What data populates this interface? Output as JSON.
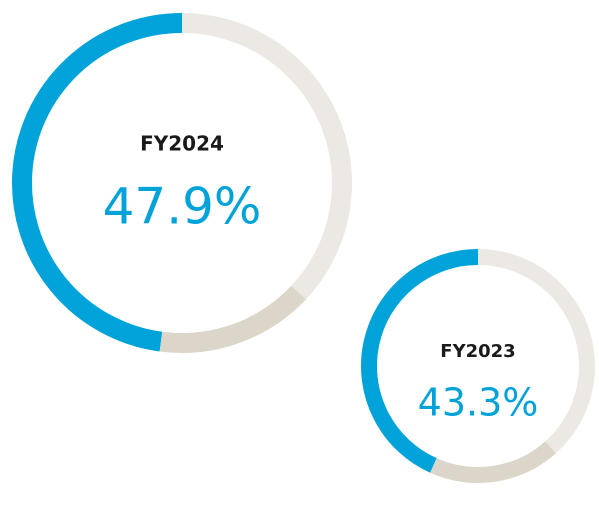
{
  "chart_data": [
    {
      "type": "donut",
      "title": "FY2024",
      "direction": "counterclockwise",
      "values": [
        47.9,
        15.1,
        37.0
      ],
      "value_labels": [
        "47.9%",
        null,
        null
      ],
      "colors": [
        "#00a3d9",
        "#dcd5c9",
        "#ece8e3"
      ]
    },
    {
      "type": "donut",
      "title": "FY2023",
      "direction": "counterclockwise",
      "values": [
        43.3,
        18.3,
        38.4
      ],
      "value_labels": [
        "43.3%",
        null,
        null
      ],
      "colors": [
        "#00a3d9",
        "#dcd5c9",
        "#ece8e3"
      ]
    }
  ]
}
